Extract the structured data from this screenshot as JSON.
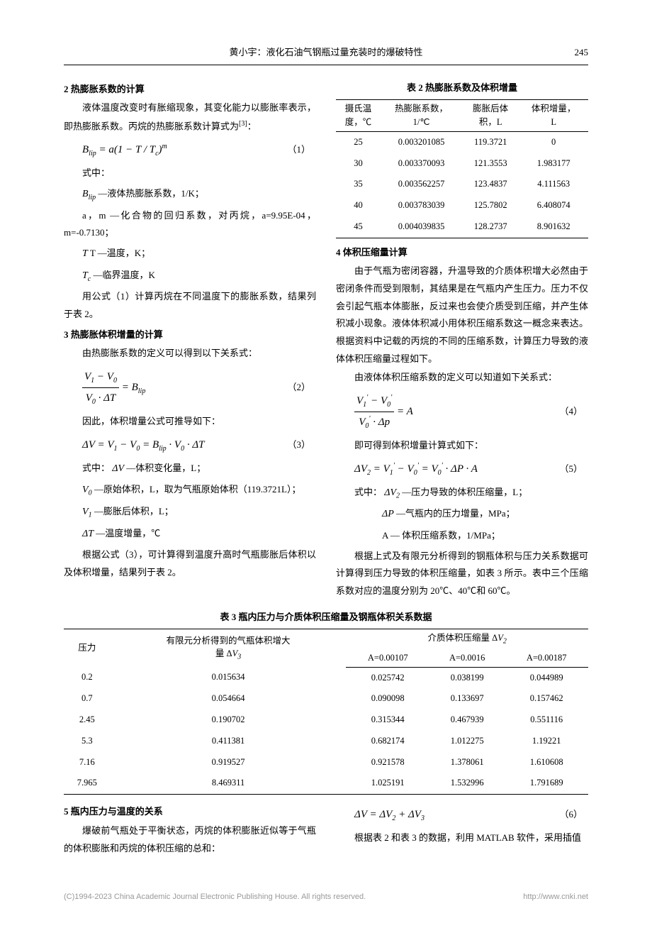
{
  "header": {
    "title": "黄小宇：液化石油气钢瓶过量充装时的爆破特性",
    "page_number": "245"
  },
  "left": {
    "s2": {
      "heading": "2  热膨胀系数的计算",
      "p1": "液体温度改变时有胀缩现象，其变化能力以膨胀率表示，即热膨胀系数。丙烷的热膨胀系数计算式为",
      "cite": "[3]",
      "p1_tail": "：",
      "eq1_label": "（1）",
      "line_shzhong": "式中：",
      "def_b": "—液体热膨胀系数，1/K；",
      "def_am": "a，m —化合物的回归系数，对丙烷，a=9.95E-04，m=-0.7130；",
      "def_T": "T —温度，K；",
      "def_Tc": "—临界温度，K",
      "p2": "用公式（1）计算丙烷在不同温度下的膨胀系数，结果列于表 2。"
    },
    "s3": {
      "heading": "3  热膨胀体积增量的计算",
      "p1": "由热膨胀系数的定义可以得到以下关系式：",
      "eq2_label": "（2）",
      "p2": "因此，体积增量公式可推导如下：",
      "eq3_label": "（3）",
      "line_shzhong": "式中：",
      "def_dv": "—体积变化量，L；",
      "def_v0": "—原始体积，L，取为气瓶原始体积（119.3721L）；",
      "def_v1": "—膨胀后体积，L；",
      "def_dt": "—温度增量，℃",
      "p3": "根据公式（3），可计算得到温度升高时气瓶膨胀后体积以及体积增量，结果列于表 2。"
    }
  },
  "right": {
    "table2": {
      "caption": "表 2  热膨胀系数及体积增量",
      "head": [
        "摄氏温度，℃",
        "热膨胀系数，1/℃",
        "膨胀后体积，L",
        "体积增量，L"
      ],
      "rows": [
        [
          "25",
          "0.003201085",
          "119.3721",
          "0"
        ],
        [
          "30",
          "0.003370093",
          "121.3553",
          "1.983177"
        ],
        [
          "35",
          "0.003562257",
          "123.4837",
          "4.111563"
        ],
        [
          "40",
          "0.003783039",
          "125.7802",
          "6.408074"
        ],
        [
          "45",
          "0.004039835",
          "128.2737",
          "8.901632"
        ]
      ]
    },
    "s4": {
      "heading": "4  体积压缩量计算",
      "p1": "由于气瓶为密闭容器，升温导致的介质体积增大必然由于密闭条件而受到限制，其结果是在气瓶内产生压力。压力不仅会引起气瓶本体膨胀，反过来也会使介质受到压缩，并产生体积减小现象。液体体积减小用体积压缩系数这一概念来表达。根据资料中记载的丙烷的不同的压缩系数，计算压力导致的液体体积压缩量过程如下。",
      "p2": "由液体体积压缩系数的定义可以知道如下关系式：",
      "eq4_label": "（4）",
      "p3": "即可得到体积增量计算式如下：",
      "eq5_label": "（5）",
      "line_shzhong": "式中：",
      "def_dv2": "—压力导致的体积压缩量，L；",
      "def_dp": "—气瓶内的压力增量，MPa；",
      "def_A": "A — 体积压缩系数，1/MPa；",
      "p4": "根据上式及有限元分析得到的钢瓶体积与压力关系数据可计算得到压力导致的体积压缩量，如表 3 所示。表中三个压缩系数对应的温度分别为 20℃、40℃和 60℃。"
    }
  },
  "table3": {
    "caption": "表 3  瓶内压力与介质体积压缩量及钢瓶体积关系数据",
    "head_r1": [
      "压力",
      "有限元分析得到的气瓶体积增大量 ΔV₃",
      "介质体积压缩量 ΔV₂"
    ],
    "head_r2": [
      "A=0.00107",
      "A=0.0016",
      "A=0.00187"
    ],
    "rows": [
      [
        "0.2",
        "0.015634",
        "0.025742",
        "0.038199",
        "0.044989"
      ],
      [
        "0.7",
        "0.054664",
        "0.090098",
        "0.133697",
        "0.157462"
      ],
      [
        "2.45",
        "0.190702",
        "0.315344",
        "0.467939",
        "0.551116"
      ],
      [
        "5.3",
        "0.411381",
        "0.682174",
        "1.012275",
        "1.19221"
      ],
      [
        "7.16",
        "0.919527",
        "0.921578",
        "1.378061",
        "1.610608"
      ],
      [
        "7.965",
        "8.469311",
        "1.025191",
        "1.532996",
        "1.791689"
      ]
    ]
  },
  "bottom": {
    "s5": {
      "heading": "5  瓶内压力与温度的关系",
      "p1": "爆破前气瓶处于平衡状态，丙烷的体积膨胀近似等于气瓶的体积膨胀和丙烷的体积压缩的总和：",
      "eq6_label": "（6）",
      "p2": "根据表 2 和表 3 的数据，利用 MATLAB 软件，采用插值"
    }
  },
  "footer": {
    "copyright": "(C)1994-2023 China Academic Journal Electronic Publishing House. All rights reserved.",
    "url": "http://www.cnki.net"
  }
}
